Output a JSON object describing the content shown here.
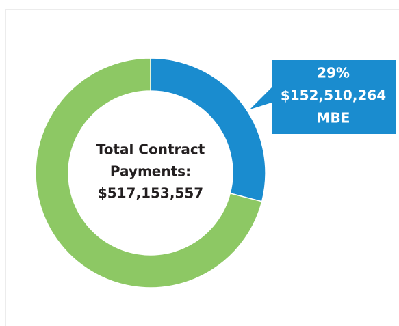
{
  "chart_data": {
    "type": "donut",
    "categories": [
      "MBE",
      null
    ],
    "values": [
      29,
      71
    ],
    "value_labels": [
      "29%",
      null
    ],
    "amount_labels": [
      "$152,510,264",
      null
    ],
    "colors": [
      "#1a8ccf",
      "#8dc864"
    ],
    "center_text": [
      "Total Contract",
      "Payments:",
      "$517,153,557"
    ]
  }
}
